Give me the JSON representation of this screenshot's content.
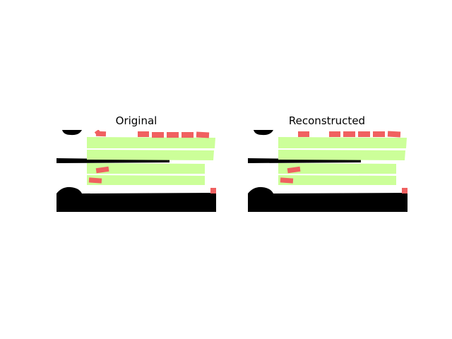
{
  "figure": {
    "panels": [
      {
        "title": "Original"
      },
      {
        "title": "Reconstructed"
      }
    ]
  },
  "colors": {
    "background": "#ffffff",
    "black_region": "#000000",
    "green_region": "#ccff99",
    "red_region": "#f06060"
  }
}
